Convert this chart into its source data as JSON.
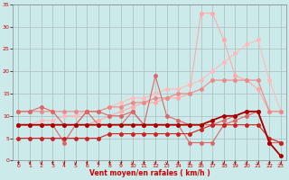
{
  "x": [
    0,
    1,
    2,
    3,
    4,
    5,
    6,
    7,
    8,
    9,
    10,
    11,
    12,
    13,
    14,
    15,
    16,
    17,
    18,
    19,
    20,
    21,
    22,
    23
  ],
  "line_linear_light": [
    8,
    8,
    9,
    9,
    10,
    10,
    11,
    11,
    12,
    13,
    14,
    14,
    15,
    16,
    16,
    17,
    18,
    20,
    22,
    24,
    26,
    27,
    18,
    11
  ],
  "line_peak_light": [
    8,
    8,
    8,
    8,
    8,
    8,
    8,
    9,
    10,
    11,
    12,
    13,
    13,
    14,
    14,
    15,
    33,
    33,
    27,
    19,
    18,
    16,
    11,
    11
  ],
  "line_medium_wavy": [
    11,
    11,
    11,
    11,
    11,
    11,
    11,
    11,
    12,
    12,
    13,
    13,
    14,
    14,
    15,
    15,
    16,
    18,
    18,
    18,
    18,
    18,
    11,
    11
  ],
  "line_zigzag1": [
    11,
    11,
    12,
    11,
    8,
    8,
    11,
    11,
    10,
    10,
    11,
    8,
    19,
    10,
    9,
    8,
    8,
    8,
    9,
    10,
    11,
    11,
    4,
    4
  ],
  "line_zigzag2": [
    8,
    8,
    8,
    8,
    4,
    8,
    11,
    8,
    8,
    8,
    11,
    8,
    8,
    8,
    8,
    4,
    4,
    4,
    8,
    9,
    10,
    11,
    4,
    4
  ],
  "line_dark_main": [
    8,
    8,
    8,
    8,
    8,
    8,
    8,
    8,
    8,
    8,
    8,
    8,
    8,
    8,
    8,
    8,
    8,
    9,
    10,
    10,
    11,
    11,
    4,
    1
  ],
  "line_lower": [
    5,
    5,
    5,
    5,
    5,
    5,
    5,
    5,
    6,
    6,
    6,
    6,
    6,
    6,
    6,
    6,
    7,
    8,
    8,
    8,
    8,
    8,
    5,
    4
  ],
  "xlabel": "Vent moyen/en rafales ( km/h )",
  "yticks": [
    0,
    5,
    10,
    15,
    20,
    25,
    30,
    35
  ],
  "xticks": [
    0,
    1,
    2,
    3,
    4,
    5,
    6,
    7,
    8,
    9,
    10,
    11,
    12,
    13,
    14,
    15,
    16,
    17,
    18,
    19,
    20,
    21,
    22,
    23
  ],
  "bg_color": "#cceaea",
  "grid_color": "#aabbbb",
  "col_lightest": "#ffbbbb",
  "col_light": "#ffaaaa",
  "col_medium_light": "#ee8888",
  "col_medium": "#dd6666",
  "col_dark": "#cc2222",
  "col_darkest": "#aa0000"
}
